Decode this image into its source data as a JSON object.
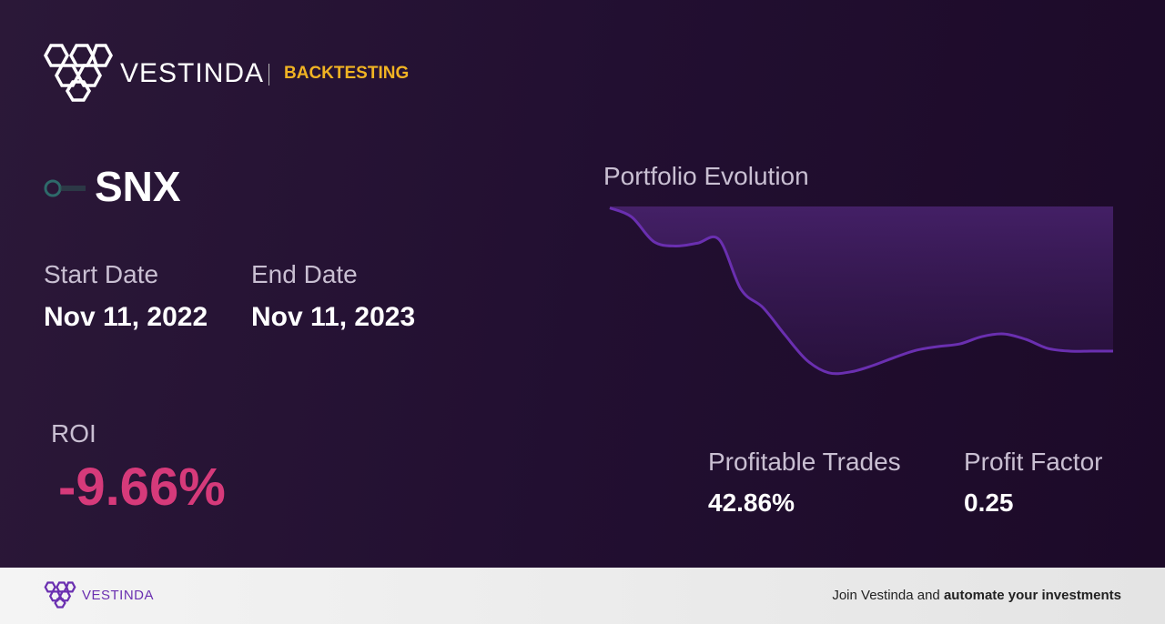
{
  "header": {
    "brand": "VESTINDA",
    "tag": "BACKTESTING"
  },
  "asset": {
    "ticker": "SNX"
  },
  "dates": {
    "start_label": "Start Date",
    "start_value": "Nov 11, 2022",
    "end_label": "End Date",
    "end_value": "Nov 11, 2023"
  },
  "roi": {
    "label": "ROI",
    "value": "-9.66%"
  },
  "stats": {
    "trades_label": "Profitable Trades",
    "trades_value": "42.86%",
    "factor_label": "Profit Factor",
    "factor_value": "0.25"
  },
  "chart_data": {
    "type": "line",
    "title": "Portfolio Evolution",
    "color": "#6a2fb0",
    "values": [
      100.0,
      99.39,
      97.74,
      97.43,
      97.62,
      97.86,
      94.5,
      93.28,
      91.44,
      89.73,
      88.88,
      88.94,
      89.36,
      89.91,
      90.4,
      90.65,
      90.83,
      91.32,
      91.5,
      91.14,
      90.53,
      90.34,
      90.34,
      90.34
    ],
    "ylim": [
      88.5,
      100.1
    ]
  },
  "footer": {
    "brand": "VESTINDA",
    "cta_prefix": "Join Vestinda and",
    "cta_bold": "automate your investments"
  }
}
